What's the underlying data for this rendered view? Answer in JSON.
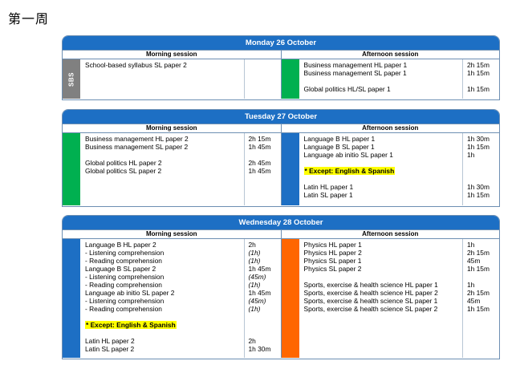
{
  "page_title": "第一周",
  "session_labels": {
    "morning": "Morning session",
    "afternoon": "Afternoon session"
  },
  "days": [
    {
      "title": "Monday 26 October",
      "morning": {
        "bar_color": "#808080",
        "bar_label": "SBS",
        "lines": [
          {
            "name": "School-based syllabus SL paper 2",
            "dur": ""
          }
        ]
      },
      "afternoon": {
        "bar_color": "#00b050",
        "lines": [
          {
            "name": "Business management HL paper 1",
            "dur": "2h 15m"
          },
          {
            "name": "Business management SL paper 1",
            "dur": "1h 15m"
          },
          {
            "name": "",
            "dur": ""
          },
          {
            "name": "Global politics HL/SL paper 1",
            "dur": "1h 15m"
          }
        ]
      }
    },
    {
      "title": "Tuesday 27 October",
      "morning": {
        "bar_color": "#00b050",
        "lines": [
          {
            "name": "Business management HL paper 2",
            "dur": "2h 15m"
          },
          {
            "name": "Business management SL paper 2",
            "dur": "1h 45m"
          },
          {
            "name": "",
            "dur": ""
          },
          {
            "name": "Global politics HL paper 2",
            "dur": "2h 45m"
          },
          {
            "name": "Global politics SL paper 2",
            "dur": "1h 45m"
          }
        ]
      },
      "afternoon": {
        "bar_color": "#1d6fc4",
        "lines": [
          {
            "name": "Language B HL paper 1",
            "dur": "1h 30m"
          },
          {
            "name": "Language B SL paper 1",
            "dur": "1h 15m"
          },
          {
            "name": "Language ab initio SL paper 1",
            "dur": "1h"
          },
          {
            "name": "",
            "dur": ""
          },
          {
            "name": "* Except: English & Spanish",
            "dur": "",
            "highlight": true
          },
          {
            "name": "",
            "dur": ""
          },
          {
            "name": "Latin HL paper 1",
            "dur": "1h 30m"
          },
          {
            "name": "Latin SL paper 1",
            "dur": "1h 15m"
          }
        ]
      }
    },
    {
      "title": "Wednesday 28 October",
      "morning": {
        "bar_color": "#1d6fc4",
        "lines": [
          {
            "name": "Language B HL paper 2",
            "dur": "2h"
          },
          {
            "name": "- Listening comprehension",
            "dur": "(1h)",
            "italic": true
          },
          {
            "name": "- Reading comprehension",
            "dur": "(1h)",
            "italic": true
          },
          {
            "name": "Language B SL paper 2",
            "dur": "1h 45m"
          },
          {
            "name": "- Listening comprehension",
            "dur": "(45m)",
            "italic": true
          },
          {
            "name": "- Reading comprehension",
            "dur": "(1h)",
            "italic": true
          },
          {
            "name": "Language ab initio SL paper 2",
            "dur": "1h 45m"
          },
          {
            "name": "- Listening comprehension",
            "dur": "(45m)",
            "italic": true
          },
          {
            "name": "- Reading comprehension",
            "dur": "(1h)",
            "italic": true
          },
          {
            "name": "",
            "dur": ""
          },
          {
            "name": "* Except: English & Spanish",
            "dur": "",
            "highlight": true
          },
          {
            "name": "",
            "dur": ""
          },
          {
            "name": "Latin HL paper 2",
            "dur": "2h"
          },
          {
            "name": "Latin SL paper 2",
            "dur": "1h 30m"
          }
        ]
      },
      "afternoon": {
        "bar_color": "#ff6600",
        "lines": [
          {
            "name": "Physics HL paper 1",
            "dur": "1h"
          },
          {
            "name": "Physics HL paper 2",
            "dur": "2h 15m"
          },
          {
            "name": "Physics SL paper 1",
            "dur": "45m"
          },
          {
            "name": "Physics SL paper 2",
            "dur": "1h 15m"
          },
          {
            "name": "",
            "dur": ""
          },
          {
            "name": "Sports, exercise & health science HL paper 1",
            "dur": "1h"
          },
          {
            "name": "Sports, exercise & health science HL paper 2",
            "dur": "2h 15m"
          },
          {
            "name": "Sports, exercise & health science SL paper 1",
            "dur": "45m"
          },
          {
            "name": "Sports, exercise & health science SL paper 2",
            "dur": "1h 15m"
          }
        ]
      }
    }
  ]
}
